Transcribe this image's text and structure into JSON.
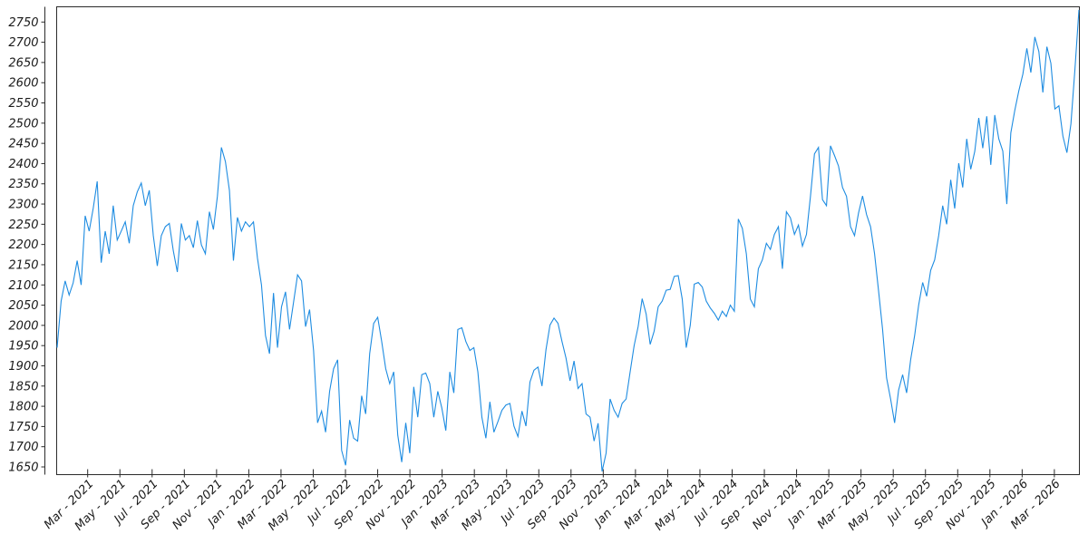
{
  "page": {
    "background": "#ffffff"
  },
  "chart_data": {
    "type": "line",
    "title": "",
    "legend": false,
    "grid": false,
    "line_color": "#1e8ce1",
    "axis_color": "#2b2b2b",
    "tick_label_color": "#1a1a1a",
    "x_axis": {
      "label": "",
      "tick_labels": [
        "Mar - 2021",
        "May - 2021",
        "Jul - 2021",
        "Sep - 2021",
        "Nov - 2021",
        "Jan - 2022",
        "Mar - 2022",
        "May - 2022",
        "Jul - 2022",
        "Sep - 2022",
        "Nov - 2022",
        "Jan - 2023",
        "Mar - 2023",
        "May - 2023",
        "Jul - 2023",
        "Sep - 2023",
        "Nov - 2023",
        "Jan - 2024",
        "Mar - 2024",
        "May - 2024",
        "Jul - 2024",
        "Sep - 2024",
        "Nov - 2024",
        "Jan - 2025",
        "Mar - 2025",
        "May - 2025",
        "Jul - 2025",
        "Sep - 2025",
        "Nov - 2025",
        "Jan - 2026",
        "Mar - 2026"
      ],
      "tick_interval_months": 2,
      "data_start": "Jan 2021",
      "data_end": "Apr 2026"
    },
    "y_axis": {
      "label": "",
      "ticks": [
        1650,
        1700,
        1750,
        1800,
        1850,
        1900,
        1950,
        2000,
        2050,
        2100,
        2150,
        2200,
        2250,
        2300,
        2350,
        2400,
        2450,
        2500,
        2550,
        2600,
        2650,
        2700,
        2750
      ],
      "min": 1650,
      "max": 2750
    },
    "series": [
      {
        "name": "value",
        "points_per_month": 4,
        "start_month": "Jan 2021",
        "values": [
          1945,
          2060,
          2110,
          2075,
          2105,
          2160,
          2100,
          2271,
          2233,
          2289,
          2356,
          2155,
          2233,
          2177,
          2296,
          2211,
          2233,
          2256,
          2203,
          2296,
          2330,
          2352,
          2296,
          2334,
          2222,
          2147,
          2222,
          2244,
          2252,
          2184,
          2132,
          2252,
          2211,
          2222,
          2192,
          2259,
          2199,
          2177,
          2281,
          2237,
          2319,
          2440,
          2405,
          2334,
          2160,
          2267,
          2233,
          2256,
          2244,
          2256,
          2166,
          2100,
          1975,
          1930,
          2080,
          1945,
          2046,
          2083,
          1990,
          2057,
          2125,
          2110,
          1997,
          2039,
          1938,
          1759,
          1788,
          1736,
          1837,
          1893,
          1915,
          1691,
          1654,
          1766,
          1721,
          1714,
          1826,
          1781,
          1930,
          2005,
          2020,
          1960,
          1893,
          1856,
          1885,
          1729,
          1662,
          1759,
          1684,
          1848,
          1773,
          1878,
          1882,
          1856,
          1773,
          1837,
          1796,
          1740,
          1885,
          1833,
          1990,
          1994,
          1960,
          1938,
          1945,
          1885,
          1773,
          1721,
          1811,
          1736,
          1762,
          1790,
          1803,
          1807,
          1751,
          1725,
          1788,
          1751,
          1860,
          1889,
          1897,
          1850,
          1940,
          2001,
          2018,
          2005,
          1960,
          1919,
          1863,
          1912,
          1844,
          1856,
          1781,
          1773,
          1714,
          1758,
          1639,
          1684,
          1818,
          1790,
          1773,
          1807,
          1818,
          1885,
          1950,
          1997,
          2066,
          2028,
          1953,
          1986,
          2046,
          2060,
          2087,
          2089,
          2121,
          2123,
          2065,
          1945,
          2000,
          2102,
          2106,
          2095,
          2060,
          2043,
          2030,
          2013,
          2035,
          2022,
          2050,
          2035,
          2263,
          2240,
          2177,
          2065,
          2046,
          2140,
          2162,
          2203,
          2188,
          2225,
          2244,
          2140,
          2281,
          2266,
          2225,
          2248,
          2196,
          2225,
          2319,
          2424,
          2440,
          2311,
          2296,
          2444,
          2420,
          2394,
          2341,
          2319,
          2244,
          2222,
          2278,
          2320,
          2274,
          2244,
          2177,
          2085,
          1990,
          1870,
          1818,
          1759,
          1840,
          1878,
          1833,
          1915,
          1975,
          2050,
          2106,
          2072,
          2136,
          2162,
          2222,
          2296,
          2250,
          2360,
          2289,
          2401,
          2341,
          2461,
          2386,
          2430,
          2513,
          2438,
          2517,
          2397,
          2520,
          2461,
          2431,
          2300,
          2476,
          2532,
          2580,
          2621,
          2685,
          2625,
          2713,
          2677,
          2576,
          2689,
          2648,
          2535,
          2543,
          2468,
          2427,
          2498,
          2633,
          2780
        ]
      }
    ]
  }
}
